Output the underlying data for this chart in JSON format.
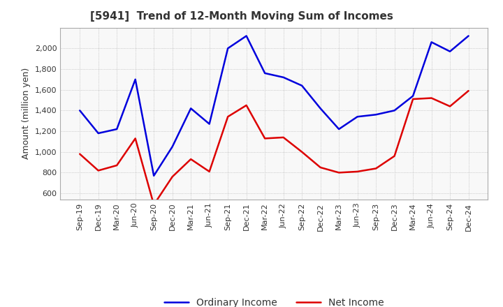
{
  "title": "[5941]  Trend of 12-Month Moving Sum of Incomes",
  "ylabel": "Amount (million yen)",
  "background_color": "#ffffff",
  "grid_color": "#999999",
  "plot_bg_color": "#f8f8f8",
  "x_labels": [
    "Sep-19",
    "Dec-19",
    "Mar-20",
    "Jun-20",
    "Sep-20",
    "Dec-20",
    "Mar-21",
    "Jun-21",
    "Sep-21",
    "Dec-21",
    "Mar-22",
    "Jun-22",
    "Sep-22",
    "Dec-22",
    "Mar-23",
    "Jun-23",
    "Sep-23",
    "Dec-23",
    "Mar-24",
    "Jun-24",
    "Sep-24",
    "Dec-24"
  ],
  "ordinary_income": [
    1400,
    1180,
    1220,
    1700,
    770,
    1050,
    1420,
    1270,
    2000,
    2120,
    1760,
    1720,
    1640,
    1420,
    1220,
    1340,
    1360,
    1400,
    1540,
    2060,
    1970,
    2120
  ],
  "net_income": [
    980,
    820,
    870,
    1130,
    490,
    760,
    930,
    810,
    1340,
    1450,
    1130,
    1140,
    1000,
    850,
    800,
    810,
    840,
    960,
    1510,
    1520,
    1440,
    1590
  ],
  "ordinary_color": "#0000dd",
  "net_color": "#dd0000",
  "ylim": [
    540,
    2200
  ],
  "yticks": [
    600,
    800,
    1000,
    1200,
    1400,
    1600,
    1800,
    2000
  ],
  "line_width": 1.8,
  "title_fontsize": 11,
  "legend_fontsize": 10,
  "tick_fontsize": 8,
  "ylabel_fontsize": 9
}
